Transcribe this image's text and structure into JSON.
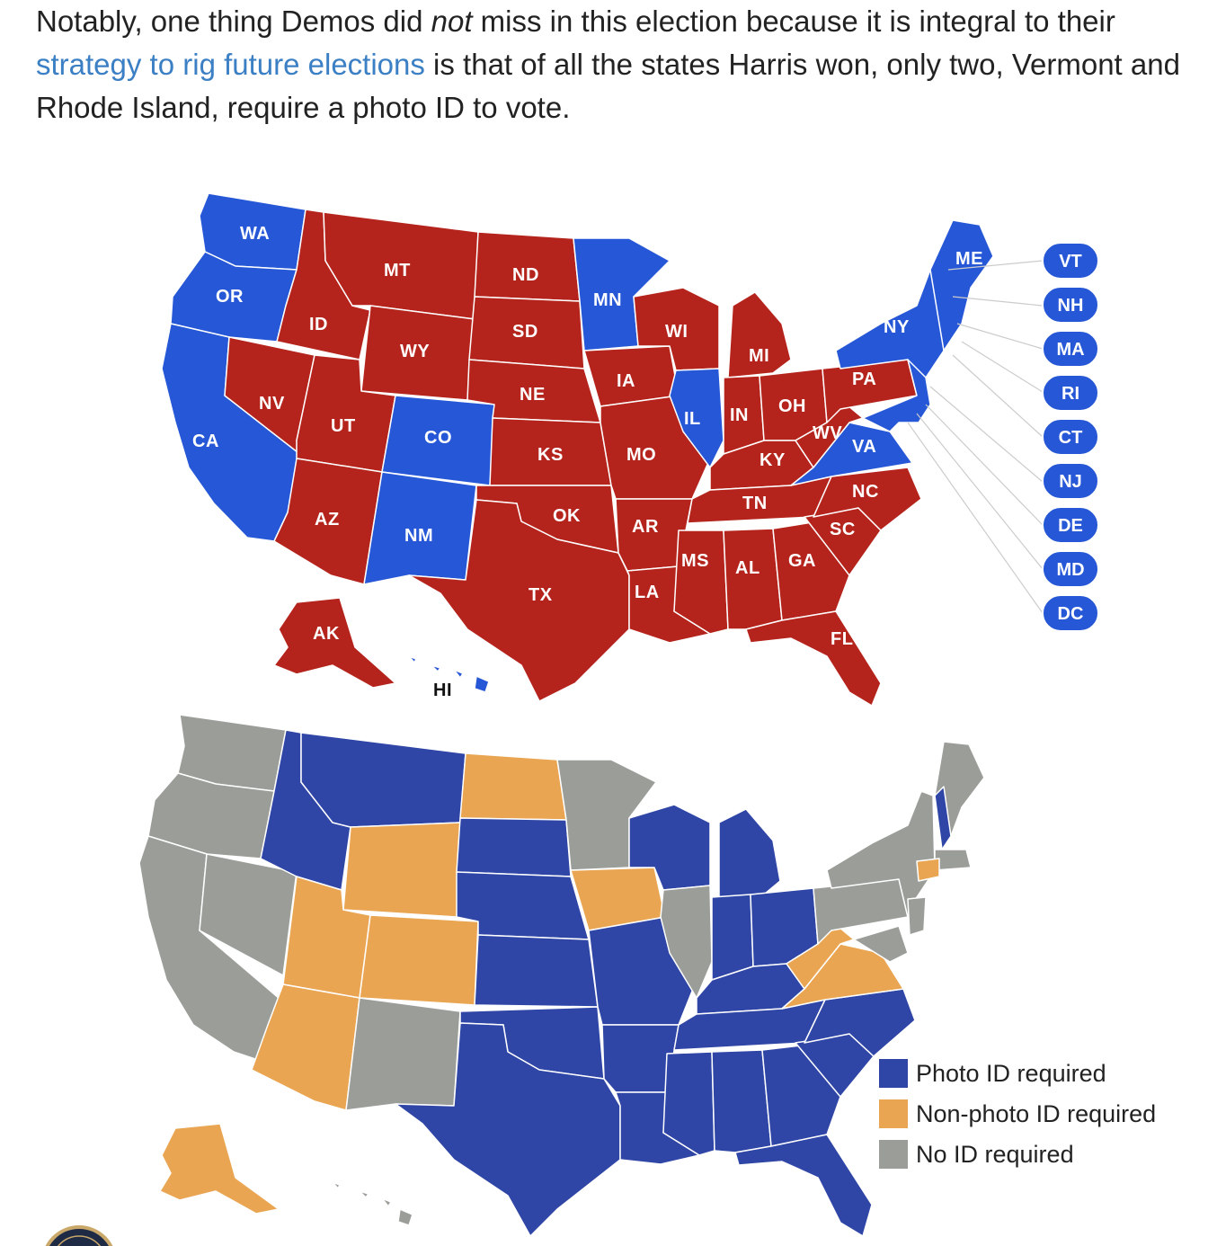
{
  "article": {
    "pre": "Notably, one thing Demos did ",
    "emph": "not",
    "mid": " miss in this election because it is integral to their ",
    "link": "strategy to rig future elections",
    "post": " is that of all the states Harris won, only two, Vermont and Rhode Island, require a photo ID to vote."
  },
  "colors": {
    "harris": "#2657d6",
    "trump": "#b5241c",
    "photo_id": "#2f46a6",
    "non_photo_id": "#e9a551",
    "no_id": "#9a9d98"
  },
  "election_map": {
    "labels": {
      "WA": "WA",
      "OR": "OR",
      "CA": "CA",
      "ID": "ID",
      "NV": "NV",
      "MT": "MT",
      "WY": "WY",
      "UT": "UT",
      "CO": "CO",
      "AZ": "AZ",
      "NM": "NM",
      "ND": "ND",
      "SD": "SD",
      "NE": "NE",
      "KS": "KS",
      "OK": "OK",
      "TX": "TX",
      "MN": "MN",
      "IA": "IA",
      "MO": "MO",
      "AR": "AR",
      "LA": "LA",
      "WI": "WI",
      "IL": "IL",
      "MI": "MI",
      "IN": "IN",
      "OH": "OH",
      "KY": "KY",
      "TN": "TN",
      "MS": "MS",
      "AL": "AL",
      "GA": "GA",
      "FL": "FL",
      "SC": "SC",
      "NC": "NC",
      "VA": "VA",
      "WV": "WV",
      "PA": "PA",
      "NY": "NY",
      "ME": "ME",
      "AK": "AK",
      "HI": "HI"
    },
    "small_states": [
      "VT",
      "NH",
      "MA",
      "RI",
      "CT",
      "NJ",
      "DE",
      "MD",
      "DC"
    ]
  },
  "legend": {
    "photo": "Photo ID required",
    "nonphoto": "Non-photo ID required",
    "noid": "No ID required"
  }
}
